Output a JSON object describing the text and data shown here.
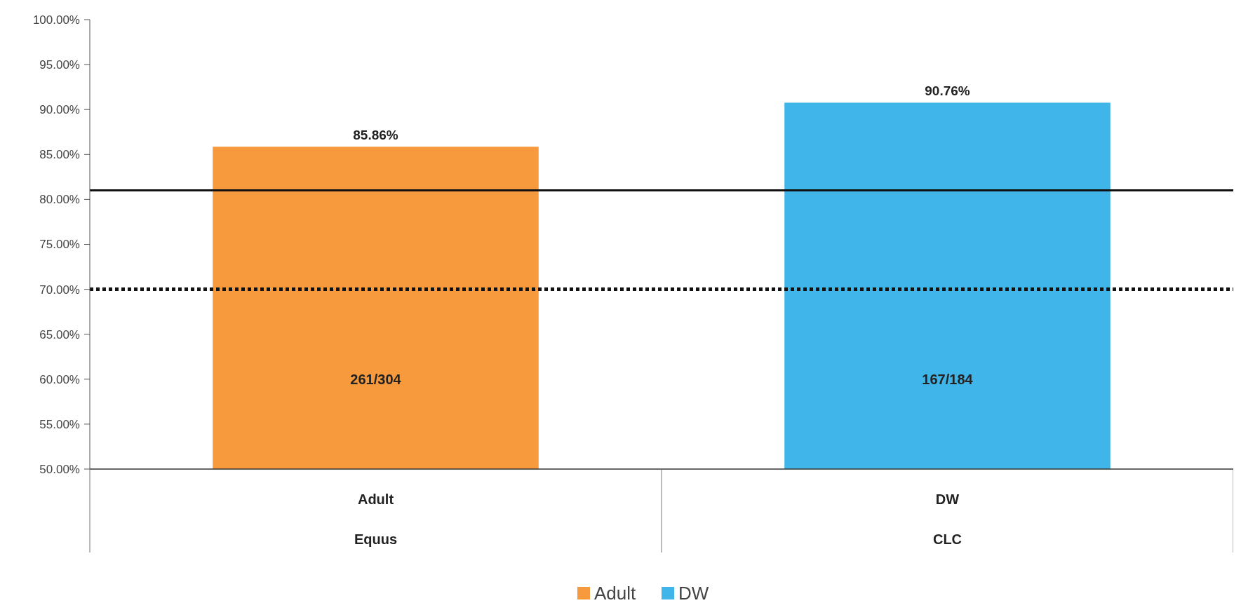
{
  "chart_data": {
    "type": "bar",
    "categories": [
      "Adult",
      "DW"
    ],
    "series": [
      {
        "name": "Adult",
        "color": "#f79a3e",
        "values": [
          85.86,
          null
        ],
        "value_labels": [
          "85.86%",
          null
        ]
      },
      {
        "name": "DW",
        "color": "#3fb5ea",
        "values": [
          null,
          90.76
        ],
        "value_labels": [
          null,
          "90.76%"
        ]
      }
    ],
    "ylim": [
      50,
      100
    ],
    "yticks": [
      {
        "value": 50,
        "label": "50.00%"
      },
      {
        "value": 55,
        "label": "55.00%"
      },
      {
        "value": 60,
        "label": "60.00%"
      },
      {
        "value": 65,
        "label": "65.00%"
      },
      {
        "value": 70,
        "label": "70.00%"
      },
      {
        "value": 75,
        "label": "75.00%"
      },
      {
        "value": 80,
        "label": "80.00%"
      },
      {
        "value": 85,
        "label": "85.00%"
      },
      {
        "value": 90,
        "label": "90.00%"
      },
      {
        "value": 95,
        "label": "95.00%"
      },
      {
        "value": 100,
        "label": "100.00%"
      }
    ],
    "ref_lines": [
      {
        "axis": "y",
        "value": 81,
        "color": "#111111",
        "line_style": "solid"
      },
      {
        "axis": "y",
        "value": 70,
        "color": "#111111",
        "line_style": "dotted"
      }
    ],
    "annotations": [
      "261/304",
      "167/184",
      "Equus",
      "CLC"
    ],
    "grid": false,
    "legend": "bottom"
  }
}
